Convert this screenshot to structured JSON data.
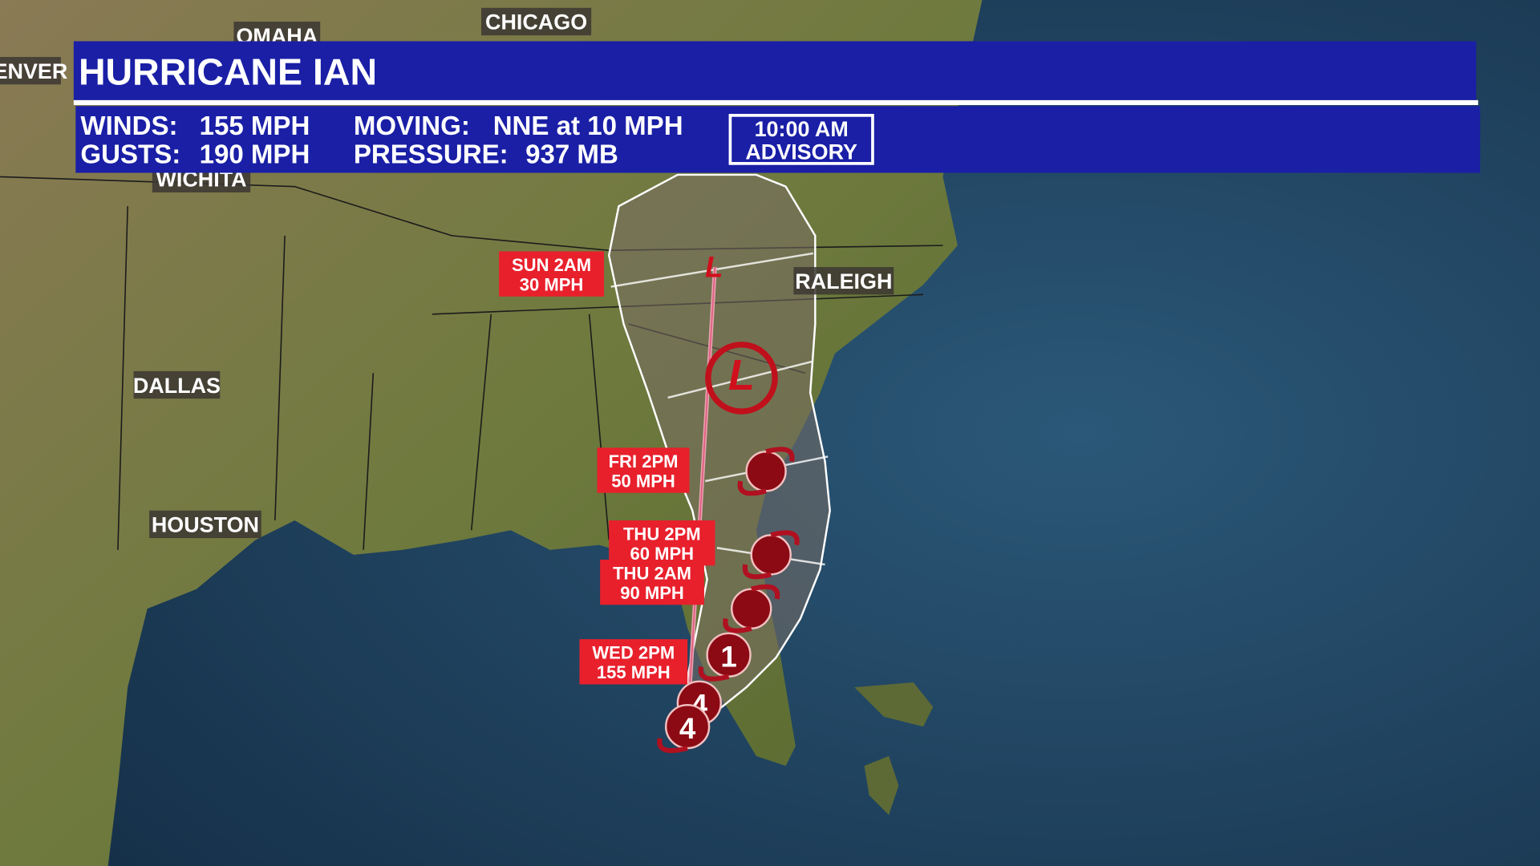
{
  "header": {
    "title": "HURRICANE IAN",
    "stats": [
      [
        "WINDS:",
        "155 MPH"
      ],
      [
        "GUSTS:",
        "190 MPH"
      ]
    ],
    "stats2": [
      [
        "MOVING:",
        "NNE at 10 MPH"
      ],
      [
        "PRESSURE:",
        "937 MB"
      ]
    ],
    "advisory": [
      "10:00 AM",
      "ADVISORY"
    ]
  },
  "cities": [
    {
      "label": "OMAHA"
    },
    {
      "label": "CHICAGO"
    },
    {
      "label": "ENVER"
    },
    {
      "label": "WICHITA"
    },
    {
      "label": "DALLAS"
    },
    {
      "label": "HOUSTON"
    },
    {
      "label": "RALEIGH"
    }
  ],
  "forecast_labels": [
    {
      "lines": [
        "SUN 2AM",
        "30 MPH"
      ]
    },
    {
      "lines": [
        "FRI 2PM",
        "50 MPH"
      ]
    },
    {
      "lines": [
        "THU 2PM",
        "60 MPH"
      ]
    },
    {
      "lines": [
        "THU 2AM",
        "90 MPH"
      ]
    },
    {
      "lines": [
        "WED 2PM",
        "155 MPH"
      ]
    }
  ],
  "markers": [
    {
      "label": "L"
    },
    {
      "label": "L"
    },
    {
      "label": "1"
    },
    {
      "label": "4"
    },
    {
      "label": "4"
    }
  ]
}
